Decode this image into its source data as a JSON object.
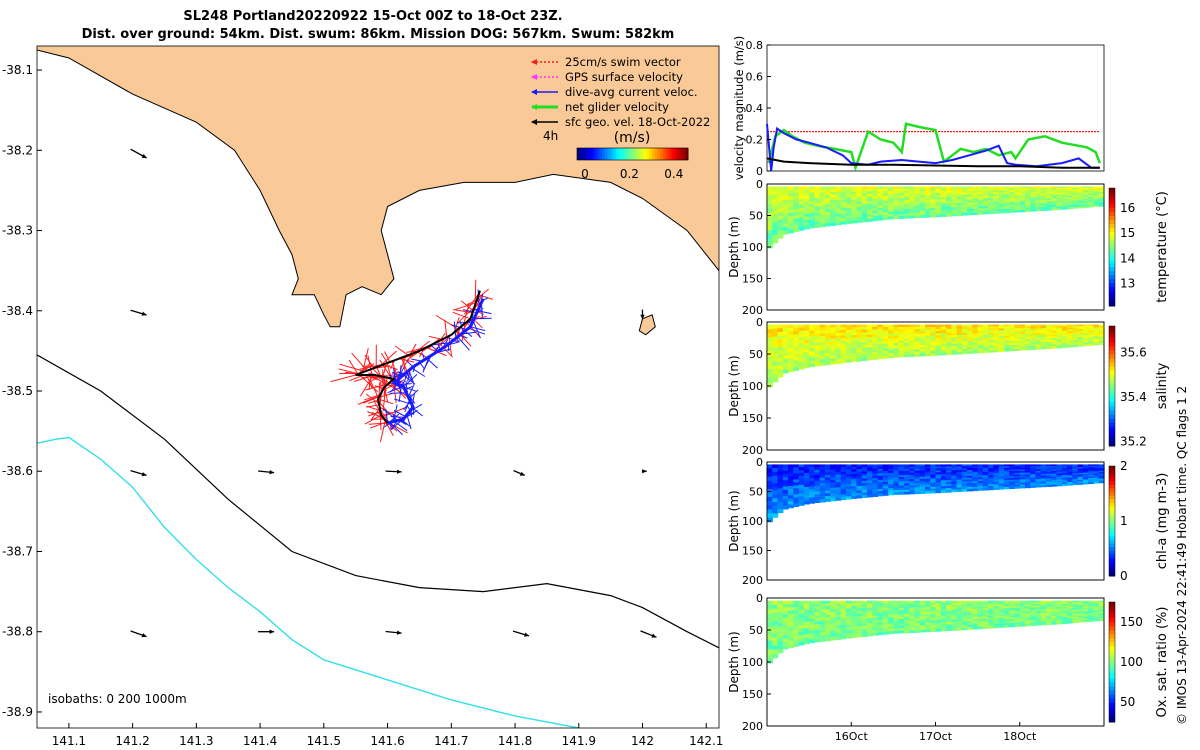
{
  "title_line1": "SL248 Portland20220922 15-Oct 00Z to 18-Oct 23Z.",
  "title_line2": "Dist. over ground: 54km. Dist. swum: 86km. Mission DOG: 567km. Swum: 582km",
  "credit": "© IMOS 13-Apr-2024 22:41:49 Hobart time. QC flags 1  2",
  "colors": {
    "land": "#f9c997",
    "coast": "#000000",
    "iso200": "#000000",
    "iso1000": "#33e0e8",
    "swim": "#ff1a1a",
    "gps": "#ff33ff",
    "current": "#1a1aff",
    "net": "#22dd22",
    "sfc": "#000000"
  },
  "chart_data": [
    {
      "type": "map",
      "xlim": [
        141.05,
        142.12
      ],
      "ylim": [
        -38.92,
        -38.07
      ],
      "xticks": [
        141.1,
        141.2,
        141.3,
        141.4,
        141.5,
        141.6,
        141.7,
        141.8,
        141.9,
        142,
        142.1
      ],
      "xtick_labels": [
        "141.1",
        "141.2",
        "141.3",
        "141.4",
        "141.5",
        "141.6",
        "141.7",
        "141.8",
        "141.9",
        "142",
        "142.1"
      ],
      "yticks": [
        -38.1,
        -38.2,
        -38.3,
        -38.4,
        -38.5,
        -38.6,
        -38.7,
        -38.8,
        -38.9
      ],
      "ytick_labels": [
        "-38.1",
        "-38.2",
        "-38.3",
        "-38.4",
        "-38.5",
        "-38.6",
        "-38.7",
        "-38.8",
        "-38.9"
      ],
      "legend": {
        "items": [
          {
            "label": "25cm/s swim vector",
            "color": "#ff1a1a",
            "dashed": true
          },
          {
            "label": "GPS surface velocity",
            "color": "#ff33ff",
            "dashed": true
          },
          {
            "label": "dive-avg current veloc.",
            "color": "#1a1aff",
            "dashed": false
          },
          {
            "label": "net glider velocity",
            "color": "#22dd22",
            "dashed": false
          },
          {
            "label": "sfc geo. vel. 18-Oct-2022",
            "color": "#000000",
            "dashed": false
          }
        ],
        "hour_label": "4h",
        "placement": "top-right"
      },
      "colorbar": {
        "label": "(m/s)",
        "ticks": [
          0,
          0.2,
          0.4
        ],
        "tick_labels": [
          "0",
          "0.2",
          "0.4"
        ],
        "range": [
          0,
          0.5
        ]
      },
      "isobath_label": "isobaths: 0   200   1000m",
      "coastline": [
        [
          141.05,
          -38.075
        ],
        [
          141.1,
          -38.085
        ],
        [
          141.2,
          -38.13
        ],
        [
          141.3,
          -38.165
        ],
        [
          141.36,
          -38.2
        ],
        [
          141.4,
          -38.25
        ],
        [
          141.43,
          -38.3
        ],
        [
          141.45,
          -38.33
        ],
        [
          141.46,
          -38.36
        ],
        [
          141.45,
          -38.38
        ],
        [
          141.485,
          -38.38
        ],
        [
          141.5,
          -38.405
        ],
        [
          141.51,
          -38.42
        ],
        [
          141.525,
          -38.42
        ],
        [
          141.535,
          -38.38
        ],
        [
          141.56,
          -38.37
        ],
        [
          141.59,
          -38.38
        ],
        [
          141.61,
          -38.36
        ],
        [
          141.6,
          -38.33
        ],
        [
          141.59,
          -38.3
        ],
        [
          141.6,
          -38.27
        ],
        [
          141.65,
          -38.25
        ],
        [
          141.72,
          -38.24
        ],
        [
          141.8,
          -38.24
        ],
        [
          141.86,
          -38.23
        ],
        [
          141.95,
          -38.24
        ],
        [
          142.0,
          -38.26
        ],
        [
          142.07,
          -38.3
        ],
        [
          142.12,
          -38.35
        ]
      ],
      "island": [
        [
          142.0,
          -38.41
        ],
        [
          142.015,
          -38.405
        ],
        [
          142.02,
          -38.42
        ],
        [
          142.005,
          -38.43
        ],
        [
          141.995,
          -38.425
        ]
      ],
      "isobath_200": [
        [
          141.05,
          -38.455
        ],
        [
          141.15,
          -38.5
        ],
        [
          141.25,
          -38.56
        ],
        [
          141.35,
          -38.635
        ],
        [
          141.45,
          -38.7
        ],
        [
          141.55,
          -38.73
        ],
        [
          141.65,
          -38.745
        ],
        [
          141.75,
          -38.75
        ],
        [
          141.85,
          -38.74
        ],
        [
          141.95,
          -38.755
        ],
        [
          142.0,
          -38.77
        ],
        [
          142.07,
          -38.8
        ],
        [
          142.12,
          -38.82
        ]
      ],
      "isobath_1000": [
        [
          141.05,
          -38.565
        ],
        [
          141.08,
          -38.56
        ],
        [
          141.1,
          -38.558
        ],
        [
          141.15,
          -38.585
        ],
        [
          141.2,
          -38.62
        ],
        [
          141.25,
          -38.67
        ],
        [
          141.3,
          -38.71
        ],
        [
          141.35,
          -38.745
        ],
        [
          141.4,
          -38.775
        ],
        [
          141.45,
          -38.81
        ],
        [
          141.5,
          -38.835
        ],
        [
          141.6,
          -38.86
        ],
        [
          141.7,
          -38.885
        ],
        [
          141.8,
          -38.905
        ],
        [
          141.9,
          -38.92
        ]
      ],
      "glider_track": [
        [
          141.6,
          -38.54
        ],
        [
          141.59,
          -38.53
        ],
        [
          141.585,
          -38.51
        ],
        [
          141.595,
          -38.495
        ],
        [
          141.61,
          -38.485
        ],
        [
          141.58,
          -38.48
        ],
        [
          141.55,
          -38.48
        ],
        [
          141.6,
          -38.465
        ],
        [
          141.65,
          -38.45
        ],
        [
          141.7,
          -38.43
        ],
        [
          141.73,
          -38.41
        ],
        [
          141.745,
          -38.375
        ]
      ],
      "current_track": [
        [
          141.6,
          -38.54
        ],
        [
          141.625,
          -38.535
        ],
        [
          141.64,
          -38.52
        ],
        [
          141.625,
          -38.495
        ],
        [
          141.61,
          -38.49
        ],
        [
          141.64,
          -38.47
        ],
        [
          141.69,
          -38.445
        ],
        [
          141.73,
          -38.42
        ],
        [
          141.75,
          -38.385
        ]
      ],
      "sfc_vectors": [
        {
          "lon": 141.2,
          "lat": -38.2,
          "u": 1.0,
          "v": -0.55
        },
        {
          "lon": 141.2,
          "lat": -38.4,
          "u": 1.0,
          "v": -0.3
        },
        {
          "lon": 141.2,
          "lat": -38.6,
          "u": 1.0,
          "v": -0.3
        },
        {
          "lon": 141.4,
          "lat": -38.6,
          "u": 1.0,
          "v": -0.1
        },
        {
          "lon": 141.6,
          "lat": -38.6,
          "u": 1.0,
          "v": -0.05
        },
        {
          "lon": 141.8,
          "lat": -38.6,
          "u": 0.7,
          "v": -0.3
        },
        {
          "lon": 142.0,
          "lat": -38.6,
          "u": 0.3,
          "v": 0.0
        },
        {
          "lon": 142.0,
          "lat": -38.4,
          "u": 0.0,
          "v": -0.6
        },
        {
          "lon": 141.2,
          "lat": -38.8,
          "u": 1.0,
          "v": -0.35
        },
        {
          "lon": 141.4,
          "lat": -38.8,
          "u": 1.0,
          "v": 0.0
        },
        {
          "lon": 141.6,
          "lat": -38.8,
          "u": 1.0,
          "v": -0.1
        },
        {
          "lon": 141.8,
          "lat": -38.8,
          "u": 1.0,
          "v": -0.3
        },
        {
          "lon": 142.0,
          "lat": -38.8,
          "u": 1.0,
          "v": -0.4
        }
      ]
    },
    {
      "type": "line",
      "ylabel": "velocity magnitude (m/s)",
      "ylim": [
        0,
        0.8
      ],
      "yticks": [
        0,
        0.2,
        0.4,
        0.6,
        0.8
      ],
      "ytick_labels": [
        "0",
        "0.2",
        "0.4",
        "0.6",
        "0.8"
      ],
      "xlim": [
        15.0,
        19.0
      ],
      "series": [
        {
          "color": "#ff1a1a",
          "dashed": true,
          "x": [
            15.0,
            18.95
          ],
          "y": [
            0.25,
            0.25
          ]
        },
        {
          "color": "#22dd22",
          "x": [
            15.02,
            15.1,
            15.2,
            15.3,
            15.45,
            15.6,
            15.8,
            16.0,
            16.05,
            16.2,
            16.35,
            16.5,
            16.6,
            16.65,
            16.8,
            16.9,
            17.0,
            17.1,
            17.2,
            17.3,
            17.45,
            17.6,
            17.75,
            17.9,
            17.95,
            18.1,
            18.3,
            18.5,
            18.7,
            18.8,
            18.9,
            18.95
          ],
          "y": [
            0.05,
            0.22,
            0.26,
            0.22,
            0.18,
            0.16,
            0.14,
            0.12,
            0.02,
            0.25,
            0.2,
            0.18,
            0.12,
            0.3,
            0.28,
            0.27,
            0.26,
            0.06,
            0.1,
            0.14,
            0.12,
            0.14,
            0.1,
            0.12,
            0.08,
            0.2,
            0.22,
            0.18,
            0.16,
            0.15,
            0.12,
            0.05
          ]
        },
        {
          "color": "#1a1aff",
          "x": [
            15.0,
            15.05,
            15.08,
            15.12,
            15.2,
            15.35,
            15.5,
            15.7,
            15.9,
            16.0,
            16.2,
            16.35,
            16.6,
            16.8,
            17.0,
            17.2,
            17.4,
            17.6,
            17.75,
            17.85,
            17.95,
            18.2,
            18.5,
            18.7,
            18.85,
            18.95
          ],
          "y": [
            0.3,
            0.0,
            0.15,
            0.27,
            0.24,
            0.2,
            0.18,
            0.15,
            0.1,
            0.05,
            0.04,
            0.06,
            0.07,
            0.06,
            0.05,
            0.07,
            0.1,
            0.13,
            0.16,
            0.05,
            0.04,
            0.03,
            0.05,
            0.08,
            0.02,
            0.02
          ]
        },
        {
          "color": "#000000",
          "x": [
            15.0,
            15.2,
            15.5,
            16.0,
            16.5,
            17.0,
            17.5,
            18.0,
            18.5,
            18.95
          ],
          "y": [
            0.08,
            0.06,
            0.05,
            0.04,
            0.04,
            0.035,
            0.03,
            0.03,
            0.02,
            0.02
          ]
        }
      ]
    },
    {
      "type": "heatmap",
      "variable": "temperature",
      "ylabel": "Depth (m)",
      "clabel": "temperature (°C)",
      "yticks": [
        0,
        50,
        100,
        150,
        200
      ],
      "ytick_labels": [
        "0",
        "50",
        "100",
        "150",
        "200"
      ],
      "ctick_labels": [
        "13",
        "14",
        "15",
        "16"
      ],
      "clim": [
        12.1,
        16.8
      ],
      "mean_value": 14.6,
      "surface_value": 14.9,
      "deep_value": 14.3,
      "bottom_depth": [
        [
          15.0,
          105
        ],
        [
          15.2,
          80
        ],
        [
          15.5,
          70
        ],
        [
          16.0,
          62
        ],
        [
          16.5,
          55
        ],
        [
          17.0,
          52
        ],
        [
          17.5,
          48
        ],
        [
          18.0,
          44
        ],
        [
          18.5,
          40
        ],
        [
          18.95,
          35
        ]
      ]
    },
    {
      "type": "heatmap",
      "variable": "salinity",
      "ylabel": "Depth (m)",
      "clabel": "salinity",
      "yticks": [
        0,
        50,
        100,
        150,
        200
      ],
      "ytick_labels": [
        "0",
        "50",
        "100",
        "150",
        "200"
      ],
      "ctick_labels": [
        "35.2",
        "35.4",
        "35.6"
      ],
      "clim": [
        35.18,
        35.72
      ],
      "mean_value": 35.5,
      "surface_value": 35.53,
      "deep_value": 35.47,
      "bottom_depth": [
        [
          15.0,
          105
        ],
        [
          15.2,
          80
        ],
        [
          15.5,
          70
        ],
        [
          16.0,
          62
        ],
        [
          16.5,
          55
        ],
        [
          17.0,
          52
        ],
        [
          17.5,
          48
        ],
        [
          18.0,
          44
        ],
        [
          18.5,
          40
        ],
        [
          18.95,
          35
        ]
      ]
    },
    {
      "type": "heatmap",
      "variable": "chl-a",
      "ylabel": "Depth (m)",
      "clabel": "chl-a (mg m-3)",
      "yticks": [
        0,
        50,
        100,
        150,
        200
      ],
      "ytick_labels": [
        "0",
        "50",
        "100",
        "150",
        "200"
      ],
      "ctick_labels": [
        "0",
        "1",
        "2"
      ],
      "clim": [
        0,
        2
      ],
      "mean_value": 0.55,
      "surface_value": 0.3,
      "deep_value": 0.55,
      "bottom_depth": [
        [
          15.0,
          105
        ],
        [
          15.2,
          80
        ],
        [
          15.5,
          70
        ],
        [
          16.0,
          62
        ],
        [
          16.5,
          55
        ],
        [
          17.0,
          52
        ],
        [
          17.5,
          48
        ],
        [
          18.0,
          44
        ],
        [
          18.5,
          40
        ],
        [
          18.95,
          35
        ]
      ]
    },
    {
      "type": "heatmap",
      "variable": "oxygen",
      "ylabel": "Depth (m)",
      "clabel": "Ox. sat. ratio (%)",
      "yticks": [
        0,
        50,
        100,
        150,
        200
      ],
      "ytick_labels": [
        "0",
        "50",
        "100",
        "150",
        "200"
      ],
      "ctick_labels": [
        "50",
        "100",
        "150"
      ],
      "clim": [
        25,
        175
      ],
      "mean_value": 100,
      "surface_value": 102,
      "deep_value": 98,
      "bottom_depth": [
        [
          15.0,
          105
        ],
        [
          15.2,
          80
        ],
        [
          15.5,
          70
        ],
        [
          16.0,
          62
        ],
        [
          16.5,
          55
        ],
        [
          17.0,
          52
        ],
        [
          17.5,
          48
        ],
        [
          18.0,
          44
        ],
        [
          18.5,
          40
        ],
        [
          18.95,
          35
        ]
      ],
      "xticks": [
        16,
        17,
        18
      ],
      "xtick_labels": [
        "16Oct",
        "17Oct",
        "18Oct"
      ]
    }
  ]
}
